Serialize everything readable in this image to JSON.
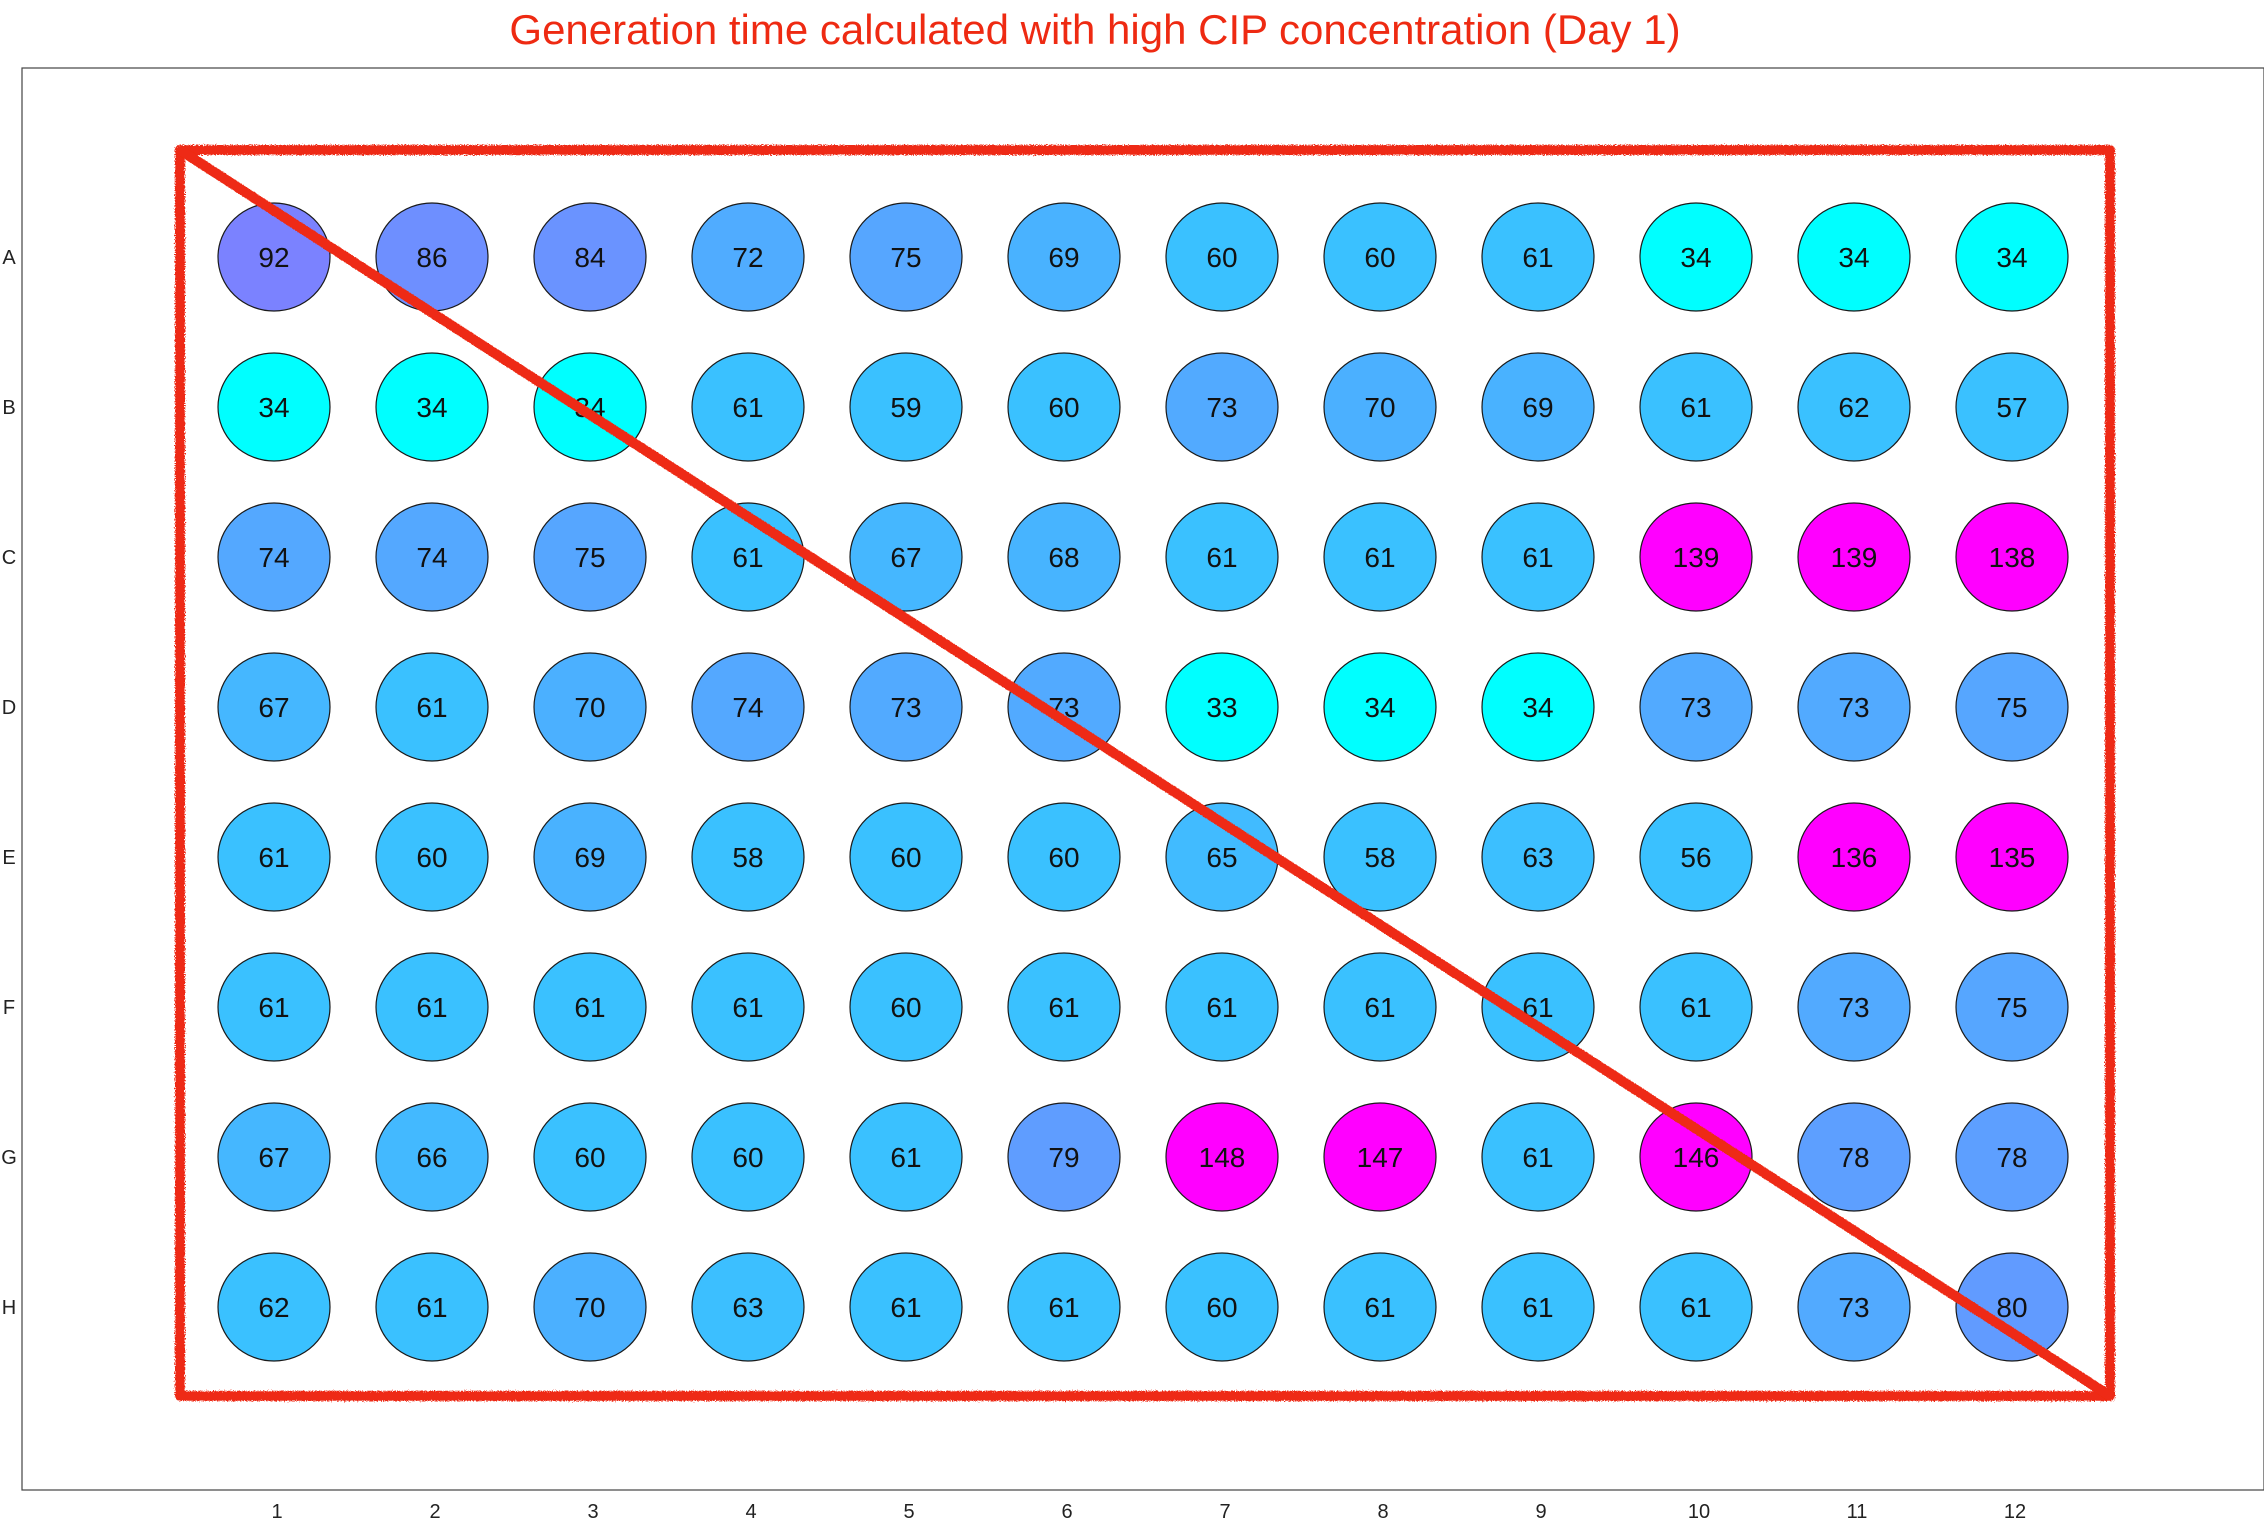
{
  "chart_data": {
    "type": "heatmap",
    "title": "Generation time calculated with high CIP concentration (Day 1)",
    "xlabel": "",
    "ylabel": "",
    "columns": [
      "1",
      "2",
      "3",
      "4",
      "5",
      "6",
      "7",
      "8",
      "9",
      "10",
      "11",
      "12"
    ],
    "rows": [
      "A",
      "B",
      "C",
      "D",
      "E",
      "F",
      "G",
      "H"
    ],
    "values": [
      [
        92,
        86,
        84,
        72,
        75,
        69,
        60,
        60,
        61,
        34,
        34,
        34
      ],
      [
        34,
        34,
        34,
        61,
        59,
        60,
        73,
        70,
        69,
        61,
        62,
        57
      ],
      [
        74,
        74,
        75,
        61,
        67,
        68,
        61,
        61,
        61,
        139,
        139,
        138
      ],
      [
        67,
        61,
        70,
        74,
        73,
        73,
        33,
        34,
        34,
        73,
        73,
        75
      ],
      [
        61,
        60,
        69,
        58,
        60,
        60,
        65,
        58,
        63,
        56,
        136,
        135
      ],
      [
        61,
        61,
        61,
        61,
        60,
        61,
        61,
        61,
        61,
        61,
        73,
        75
      ],
      [
        67,
        66,
        60,
        60,
        61,
        79,
        148,
        147,
        61,
        146,
        78,
        78
      ],
      [
        62,
        61,
        70,
        63,
        61,
        61,
        60,
        61,
        61,
        61,
        73,
        80
      ]
    ],
    "grid": false,
    "legend": "none",
    "colormap": {
      "low": "#00ffff",
      "mid": "#3ac1ff",
      "high": "#7b82ff",
      "extreme": "#ff00ff"
    },
    "annotation_color": "#ee2a12",
    "annotation": "red hand-drawn rectangle around all wells with a diagonal stroke from top-left to bottom-right"
  }
}
